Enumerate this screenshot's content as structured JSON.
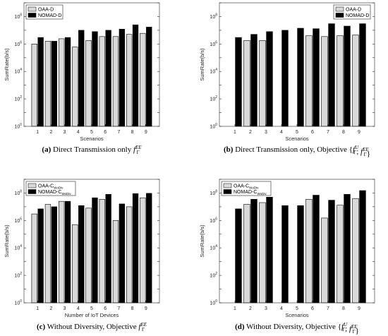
{
  "colors": {
    "series_a": "#d9d9d9",
    "series_b": "#000000",
    "axis": "#262626"
  },
  "chart_data": [
    {
      "type": "bar",
      "caption_tag": "(a)",
      "caption_text": "Direct Transmission only",
      "caption_math": {
        "base": "f",
        "sub": "Γ",
        "sup": "EE"
      },
      "xlabel": "Scenarios",
      "ylabel": "SumRate(b/s)",
      "yscale": "log",
      "ylim_exp": [
        0,
        9
      ],
      "ytick_exps": [
        0,
        2,
        4,
        6,
        8
      ],
      "legend_position": "top-left",
      "categories": [
        "1",
        "2",
        "3",
        "4",
        "5",
        "6",
        "7",
        "8",
        "9"
      ],
      "series": [
        {
          "name": "OAA-D",
          "name_sub": "",
          "color": "#d9d9d9",
          "values": [
            1000000,
            1600000,
            2400000,
            600000,
            1800000,
            3500000,
            3500000,
            5000000,
            6000000
          ]
        },
        {
          "name": "NOMAD-D",
          "name_sub": "",
          "color": "#000000",
          "values": [
            3000000,
            1600000,
            3000000,
            10000000,
            8000000,
            10000000,
            12000000,
            25000000,
            17000000
          ]
        }
      ]
    },
    {
      "type": "bar",
      "caption_tag": "(b)",
      "caption_text": "Direct Transmission only, Objective",
      "caption_math": {
        "parts": [
          {
            "base": "f",
            "sub": "Γ",
            "sup": "U"
          },
          {
            "base": "f",
            "sub": "Γ",
            "sup": "EE"
          }
        ]
      },
      "xlabel": "Scenarios",
      "ylabel": "SumRate(b/s)",
      "yscale": "log",
      "ylim_exp": [
        0,
        9
      ],
      "ytick_exps": [
        0,
        2,
        4,
        6,
        8
      ],
      "legend_position": "top-right",
      "categories": [
        "1",
        "2",
        "3",
        "4",
        "5",
        "6",
        "7",
        "8",
        "9"
      ],
      "series": [
        {
          "name": "OAA-D",
          "name_sub": "",
          "color": "#d9d9d9",
          "values": [
            null,
            1800000,
            1800000,
            null,
            null,
            4000000,
            3500000,
            4000000,
            4500000
          ]
        },
        {
          "name": "NOMAD-D",
          "name_sub": "",
          "color": "#000000",
          "values": [
            3000000,
            5000000,
            8000000,
            10000000,
            14000000,
            13000000,
            30000000,
            20000000,
            30000000
          ]
        }
      ]
    },
    {
      "type": "bar",
      "caption_tag": "(c)",
      "caption_text": "Without Diversity, Objective",
      "caption_math": {
        "base": "f",
        "sub": "Γ",
        "sup": "EE"
      },
      "xlabel": "Number of IoT Devices",
      "ylabel": "SumRate(b/s)",
      "yscale": "log",
      "ylim_exp": [
        0,
        9
      ],
      "ytick_exps": [
        0,
        2,
        4,
        6,
        8
      ],
      "legend_position": "top-left",
      "categories": [
        "1",
        "2",
        "3",
        "4",
        "5",
        "6",
        "7",
        "8",
        "9"
      ],
      "series": [
        {
          "name": "OAA-C",
          "name_sub": "WoDiv",
          "color": "#d9d9d9",
          "values": [
            3000000,
            15000000,
            25000000,
            500000,
            8000000,
            35000000,
            1000000,
            10000000,
            45000000
          ]
        },
        {
          "name": "NOMAD-C",
          "name_sub": "WoDiv",
          "color": "#000000",
          "values": [
            7000000,
            10000000,
            25000000,
            12000000,
            45000000,
            80000000,
            16000000,
            90000000,
            95000000
          ]
        }
      ]
    },
    {
      "type": "bar",
      "caption_tag": "(d)",
      "caption_text": "Without Diversity, Objective",
      "caption_math": {
        "parts": [
          {
            "base": "f",
            "sub": "Γ",
            "sup": "U"
          },
          {
            "base": "f",
            "sub": "Γ",
            "sup": "EE"
          }
        ]
      },
      "xlabel": "Scenarios",
      "ylabel": "SumRate(b/s)",
      "yscale": "log",
      "ylim_exp": [
        0,
        9
      ],
      "ytick_exps": [
        0,
        2,
        4,
        6,
        8
      ],
      "legend_position": "top-left",
      "categories": [
        "1",
        "2",
        "3",
        "4",
        "5",
        "6",
        "7",
        "8",
        "9"
      ],
      "series": [
        {
          "name": "OAA-C",
          "name_sub": "WoDiv",
          "color": "#d9d9d9",
          "values": [
            null,
            15000000,
            20000000,
            null,
            null,
            35000000,
            1500000,
            13000000,
            40000000
          ]
        },
        {
          "name": "NOMAD-C",
          "name_sub": "WoDiv",
          "color": "#000000",
          "values": [
            7000000,
            35000000,
            50000000,
            12000000,
            12000000,
            70000000,
            30000000,
            80000000,
            150000000
          ]
        }
      ]
    }
  ]
}
